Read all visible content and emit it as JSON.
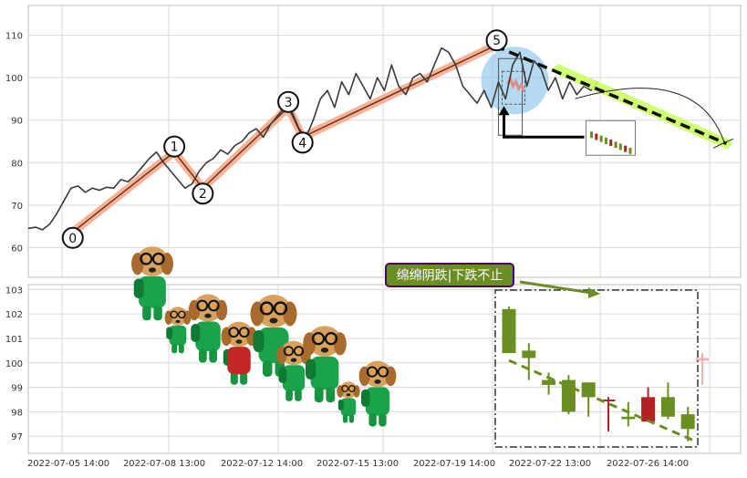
{
  "chart_data": [
    {
      "type": "line",
      "panel": "price-waves",
      "yticks": [
        60,
        70,
        80,
        90,
        100,
        110
      ],
      "ylim": [
        53,
        117
      ],
      "xlim": [
        0,
        100
      ],
      "price_line": [
        [
          0,
          64.5
        ],
        [
          1,
          64.8
        ],
        [
          2,
          64.2
        ],
        [
          3,
          65.5
        ],
        [
          4,
          68
        ],
        [
          5,
          71
        ],
        [
          6,
          74
        ],
        [
          7,
          74.5
        ],
        [
          8,
          73
        ],
        [
          9,
          74
        ],
        [
          10,
          73.5
        ],
        [
          11,
          74.2
        ],
        [
          12,
          74
        ],
        [
          13,
          76
        ],
        [
          14,
          75.5
        ],
        [
          15,
          77
        ],
        [
          16,
          79
        ],
        [
          17,
          81
        ],
        [
          18,
          82.5
        ],
        [
          19,
          80
        ],
        [
          20,
          78
        ],
        [
          21,
          76
        ],
        [
          22,
          74
        ],
        [
          23,
          75
        ],
        [
          24,
          78
        ],
        [
          25,
          80
        ],
        [
          26,
          81
        ],
        [
          27,
          83
        ],
        [
          28,
          82
        ],
        [
          29,
          84
        ],
        [
          30,
          85
        ],
        [
          31,
          87
        ],
        [
          32,
          88
        ],
        [
          33,
          86
        ],
        [
          34,
          89
        ],
        [
          35,
          91
        ],
        [
          36,
          93
        ],
        [
          37,
          92
        ],
        [
          38,
          88
        ],
        [
          39,
          86
        ],
        [
          40,
          90
        ],
        [
          41,
          95
        ],
        [
          42,
          97
        ],
        [
          43,
          93
        ],
        [
          44,
          99
        ],
        [
          45,
          96
        ],
        [
          46,
          101
        ],
        [
          47,
          98
        ],
        [
          48,
          95
        ],
        [
          49,
          100
        ],
        [
          50,
          97
        ],
        [
          51,
          103
        ],
        [
          52,
          98
        ],
        [
          53,
          96
        ],
        [
          54,
          100
        ],
        [
          55,
          101
        ],
        [
          56,
          99
        ],
        [
          57,
          103
        ],
        [
          58,
          107
        ],
        [
          59,
          106
        ],
        [
          60,
          103
        ],
        [
          61,
          98
        ],
        [
          62,
          96
        ],
        [
          63,
          94
        ],
        [
          64,
          97
        ],
        [
          65,
          93
        ],
        [
          66,
          99
        ],
        [
          67,
          95
        ],
        [
          68,
          103
        ],
        [
          69,
          106
        ],
        [
          70,
          98
        ],
        [
          71,
          104
        ],
        [
          72,
          102
        ],
        [
          73,
          97
        ],
        [
          74,
          100
        ],
        [
          75,
          95
        ],
        [
          76,
          99
        ],
        [
          77,
          96
        ],
        [
          78,
          98
        ],
        [
          79,
          97
        ],
        [
          80,
          99
        ]
      ],
      "waves": [
        {
          "label": "0",
          "x": 6.5,
          "y": 64
        },
        {
          "label": "1",
          "x": 20.5,
          "y": 82.5
        },
        {
          "label": "2",
          "x": 24.5,
          "y": 74
        },
        {
          "label": "3",
          "x": 36.5,
          "y": 93
        },
        {
          "label": "4",
          "x": 38.5,
          "y": 86
        },
        {
          "label": "5",
          "x": 65.5,
          "y": 107.5
        }
      ],
      "trend_end": {
        "x": 98,
        "y": 84.5
      },
      "arc_end": {
        "x": 99,
        "y": 86
      }
    },
    {
      "type": "candlestick",
      "panel": "candles",
      "yticks": [
        97,
        98,
        99,
        100,
        101,
        102,
        103
      ],
      "ylim": [
        96.3,
        103.2
      ],
      "xtick_labels": [
        "2022-07-05 14:00",
        "2022-07-08 13:00",
        "2022-07-12 14:00",
        "2022-07-15 13:00",
        "2022-07-19 14:00",
        "2022-07-22 13:00",
        "2022-07-26 14:00"
      ],
      "candles": [
        {
          "open": 102.2,
          "close": 100.4,
          "high": 102.3,
          "low": 100.4
        },
        {
          "open": 100.5,
          "close": 100.2,
          "high": 100.8,
          "low": 99.3
        },
        {
          "open": 99.3,
          "close": 99.1,
          "high": 99.6,
          "low": 98.7
        },
        {
          "open": 99.3,
          "close": 98.0,
          "high": 99.5,
          "low": 97.9
        },
        {
          "open": 99.2,
          "close": 98.6,
          "high": 99.2,
          "low": 97.8
        },
        {
          "open": 98.5,
          "close": 98.5,
          "high": 98.6,
          "low": 97.2
        },
        {
          "open": 97.8,
          "close": 97.7,
          "high": 98.4,
          "low": 97.4
        },
        {
          "open": 97.6,
          "close": 98.6,
          "high": 99.0,
          "low": 97.6
        },
        {
          "open": 98.6,
          "close": 97.8,
          "high": 99.2,
          "low": 97.7
        },
        {
          "open": 97.9,
          "close": 97.3,
          "high": 98.2,
          "low": 96.8
        }
      ],
      "ghost_candle": {
        "open": 100.0,
        "close": 100.2,
        "high": 100.4,
        "low": 99.1
      },
      "trend": [
        {
          "x": 0,
          "y": 100.1
        },
        {
          "x": 9,
          "y": 96.8
        }
      ],
      "annotation": "绵绵阴跌|下跌不止"
    }
  ],
  "colors": {
    "down": "#6b8e23",
    "up": "#b22222",
    "wave_path": "#f4a582",
    "trend_highlight": "#ccff66",
    "zone": "#8ec5ea",
    "annotation_bg": "#6b8e23",
    "annotation_border": "#4b0082",
    "price": "#3a3a3a"
  },
  "icons": [
    "dog-backpack-sticker",
    "dog-backpack-sticker-small",
    "candle-thumbnail"
  ]
}
